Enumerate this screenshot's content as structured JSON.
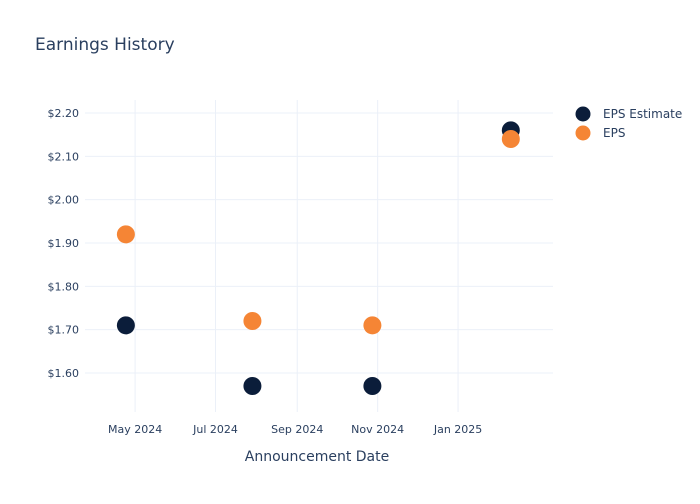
{
  "chart_data": {
    "type": "scatter",
    "title": "Earnings History",
    "xlabel": "Announcement Date",
    "ylabel": "",
    "x_ticks": [
      "2024-05-01",
      "2024-07-01",
      "2024-09-01",
      "2024-11-01",
      "2025-01-01"
    ],
    "x_tick_labels": [
      "May 2024",
      "Jul 2024",
      "Sep 2024",
      "Nov 2024",
      "Jan 2025"
    ],
    "xlim": [
      "2024-03-24",
      "2025-03-14"
    ],
    "y_ticks": [
      1.6,
      1.7,
      1.8,
      1.9,
      2.0,
      2.1,
      2.2
    ],
    "y_tick_labels": [
      "$1.60",
      "$1.70",
      "$1.80",
      "$1.90",
      "$2.00",
      "$2.10",
      "$2.20"
    ],
    "ylim": [
      1.51,
      2.23
    ],
    "grid": true,
    "legend_position": "top-right",
    "series": [
      {
        "name": "EPS Estimate",
        "color": "#0b1d3a",
        "points": [
          {
            "x": "2024-04-24",
            "y": 1.71
          },
          {
            "x": "2024-07-29",
            "y": 1.57
          },
          {
            "x": "2024-10-28",
            "y": 1.57
          },
          {
            "x": "2025-02-10",
            "y": 2.16
          }
        ]
      },
      {
        "name": "EPS",
        "color": "#f58535",
        "points": [
          {
            "x": "2024-04-24",
            "y": 1.92
          },
          {
            "x": "2024-07-29",
            "y": 1.72
          },
          {
            "x": "2024-10-28",
            "y": 1.71
          },
          {
            "x": "2025-02-10",
            "y": 2.14
          }
        ]
      }
    ]
  }
}
